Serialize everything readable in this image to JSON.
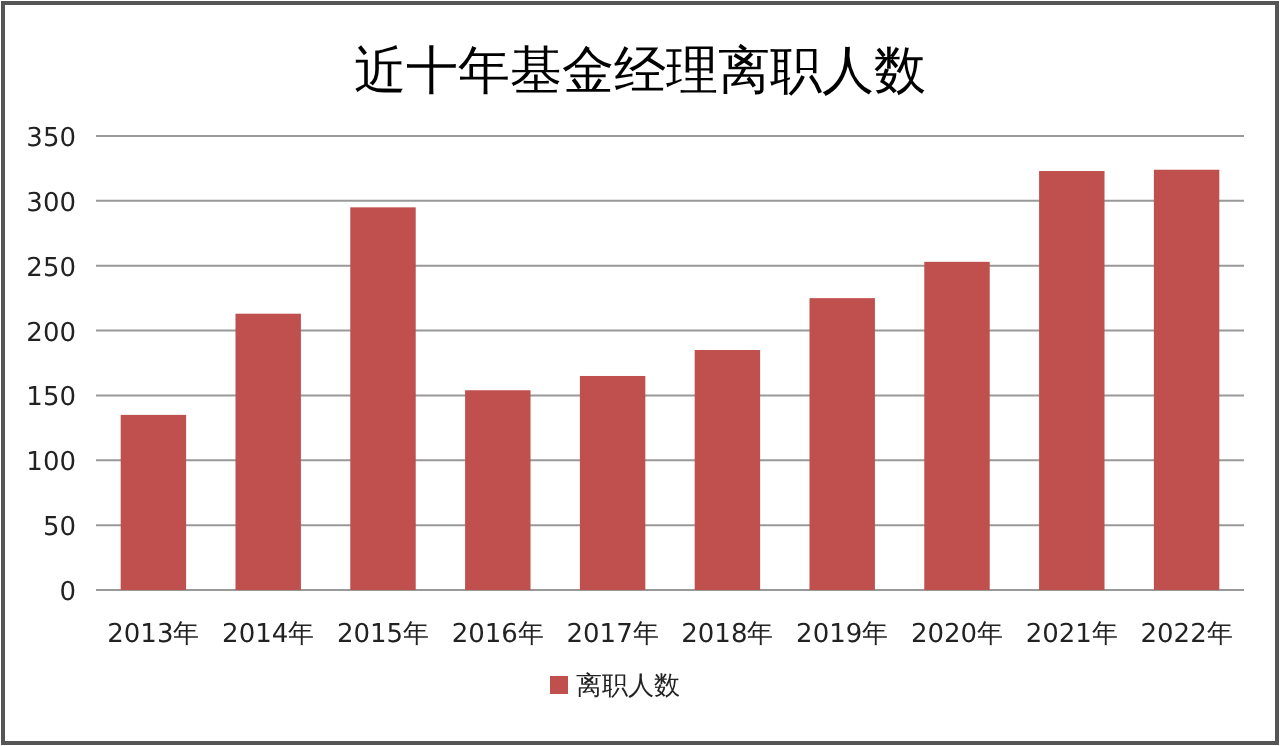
{
  "chart_data": {
    "type": "bar",
    "title": "近十年基金经理离职人数",
    "categories": [
      "2013年",
      "2014年",
      "2015年",
      "2016年",
      "2017年",
      "2018年",
      "2019年",
      "2020年",
      "2021年",
      "2022年"
    ],
    "series": [
      {
        "name": "离职人数",
        "color": "#c0504d",
        "values": [
          135,
          213,
          295,
          154,
          165,
          185,
          225,
          253,
          323,
          324
        ]
      }
    ],
    "ylim": [
      0,
      350
    ],
    "yticks": [
      0,
      50,
      100,
      150,
      200,
      250,
      300,
      350
    ],
    "grid": "y",
    "legend": "bottom"
  }
}
